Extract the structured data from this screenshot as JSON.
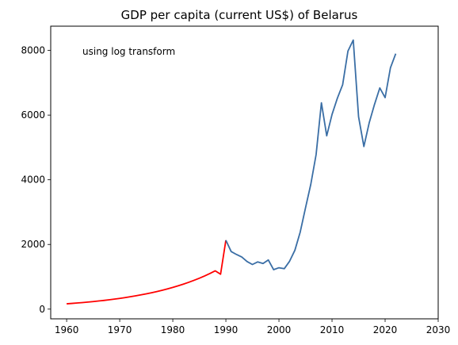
{
  "chart_data": {
    "type": "line",
    "title": "GDP per capita (current US$) of Belarus",
    "xlabel": "",
    "ylabel": "",
    "xlim": [
      1957,
      2030
    ],
    "ylim": [
      -300,
      8750
    ],
    "xticks": [
      1960,
      1970,
      1980,
      1990,
      2000,
      2010,
      2020,
      2030
    ],
    "yticks": [
      0,
      2000,
      4000,
      6000,
      8000
    ],
    "grid": false,
    "annotation": "using log transform",
    "colors": {
      "estimated": "#ff0000",
      "observed": "#3a6ea5"
    },
    "series": [
      {
        "x": [
          1960,
          1961,
          1962,
          1963,
          1964,
          1965,
          1966,
          1967,
          1968,
          1969,
          1970,
          1971,
          1972,
          1973,
          1974,
          1975,
          1976,
          1977,
          1978,
          1979,
          1980,
          1981,
          1982,
          1983,
          1984,
          1985,
          1986,
          1987,
          1988,
          1989,
          1990
        ],
        "values": [
          165,
          177,
          190,
          203,
          218,
          234,
          251,
          269,
          289,
          310,
          332,
          357,
          383,
          411,
          441,
          473,
          507,
          544,
          584,
          627,
          672,
          722,
          774,
          830,
          891,
          956,
          1027,
          1103,
          1184,
          1080,
          2130
        ]
      },
      {
        "x": [
          1990,
          1991,
          1992,
          1993,
          1994,
          1995,
          1996,
          1997,
          1998,
          1999,
          2000,
          2001,
          2002,
          2003,
          2004,
          2005,
          2006,
          2007,
          2008,
          2009,
          2010,
          2011,
          2012,
          2013,
          2014,
          2015,
          2016,
          2017,
          2018,
          2019,
          2020,
          2021,
          2022
        ],
        "values": [
          2130,
          1780,
          1690,
          1610,
          1470,
          1380,
          1460,
          1410,
          1520,
          1220,
          1280,
          1250,
          1480,
          1820,
          2380,
          3130,
          3860,
          4780,
          6380,
          5360,
          6020,
          6520,
          6940,
          7980,
          8320,
          5950,
          5030,
          5760,
          6330,
          6840,
          6540,
          7460,
          7900
        ]
      }
    ]
  }
}
